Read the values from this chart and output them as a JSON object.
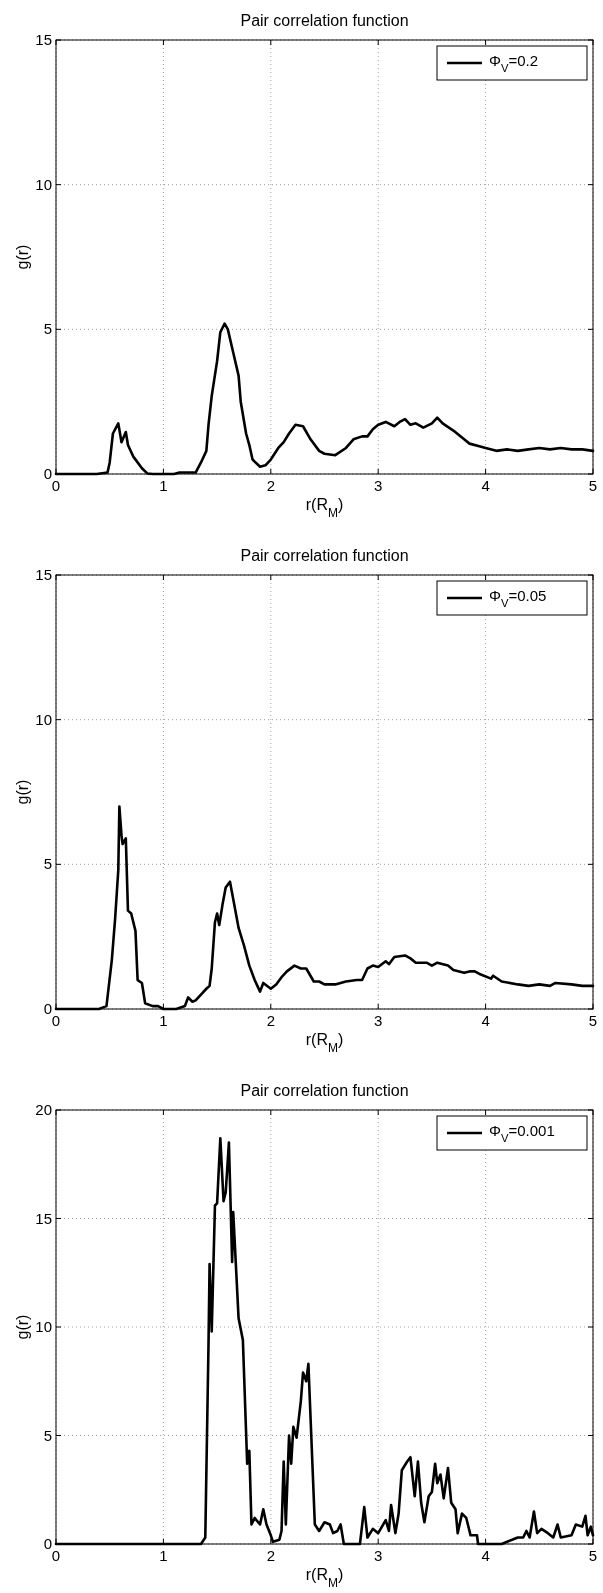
{
  "chart_data": [
    {
      "type": "line",
      "title": "Pair correlation function",
      "xlabel": "r(R$_{M}$)",
      "ylabel": "g(r)",
      "xlim": [
        0,
        5
      ],
      "xticks": [
        0,
        1,
        2,
        3,
        4,
        5
      ],
      "ylim": [
        0,
        15
      ],
      "yticks": [
        0,
        5,
        10,
        15
      ],
      "grid": true,
      "legend": "top right",
      "line_style": "solid",
      "x": [
        0,
        0.38,
        0.48,
        0.5,
        0.53,
        0.58,
        0.61,
        0.65,
        0.67,
        0.72,
        0.8,
        0.85,
        0.9,
        1.1,
        1.15,
        1.3,
        1.35,
        1.4,
        1.42,
        1.45,
        1.5,
        1.53,
        1.57,
        1.6,
        1.65,
        1.7,
        1.72,
        1.77,
        1.8,
        1.83,
        1.9,
        1.95,
        2.0,
        2.07,
        2.12,
        2.17,
        2.23,
        2.3,
        2.37,
        2.45,
        2.5,
        2.6,
        2.7,
        2.77,
        2.85,
        2.9,
        2.95,
        3.0,
        3.07,
        3.15,
        3.2,
        3.25,
        3.3,
        3.35,
        3.42,
        3.5,
        3.55,
        3.6,
        3.7,
        3.8,
        3.85,
        3.95,
        4.0,
        4.1,
        4.2,
        4.3,
        4.4,
        4.5,
        4.6,
        4.7,
        4.8,
        4.9,
        5.0
      ],
      "series": [
        {
          "name": "Φ$_{V}$=0.2",
          "color": "#000000",
          "values": [
            0,
            0,
            0.05,
            0.4,
            1.4,
            1.75,
            1.1,
            1.45,
            1.0,
            0.6,
            0.2,
            0.02,
            0,
            0,
            0.05,
            0.05,
            0.4,
            0.8,
            1.7,
            2.7,
            3.9,
            4.9,
            5.2,
            5.0,
            4.2,
            3.4,
            2.5,
            1.4,
            1.0,
            0.5,
            0.25,
            0.3,
            0.5,
            0.9,
            1.1,
            1.4,
            1.7,
            1.65,
            1.2,
            0.8,
            0.7,
            0.65,
            0.9,
            1.2,
            1.3,
            1.3,
            1.55,
            1.7,
            1.8,
            1.65,
            1.8,
            1.9,
            1.7,
            1.75,
            1.6,
            1.75,
            1.95,
            1.75,
            1.5,
            1.2,
            1.05,
            0.95,
            0.9,
            0.8,
            0.85,
            0.8,
            0.85,
            0.9,
            0.85,
            0.9,
            0.85,
            0.85,
            0.8
          ]
        }
      ]
    },
    {
      "type": "line",
      "title": "Pair correlation function",
      "xlabel": "r(R$_{M}$)",
      "ylabel": "g(r)",
      "xlim": [
        0,
        5
      ],
      "xticks": [
        0,
        1,
        2,
        3,
        4,
        5
      ],
      "ylim": [
        0,
        15
      ],
      "yticks": [
        0,
        5,
        10,
        15
      ],
      "grid": true,
      "legend": "top right",
      "line_style": "solid",
      "x": [
        0,
        0.4,
        0.47,
        0.52,
        0.55,
        0.58,
        0.59,
        0.61,
        0.62,
        0.65,
        0.67,
        0.7,
        0.74,
        0.76,
        0.8,
        0.83,
        0.9,
        0.95,
        1.0,
        1.12,
        1.2,
        1.23,
        1.27,
        1.3,
        1.35,
        1.4,
        1.43,
        1.45,
        1.48,
        1.5,
        1.52,
        1.55,
        1.58,
        1.62,
        1.66,
        1.7,
        1.75,
        1.8,
        1.85,
        1.9,
        1.93,
        2.0,
        2.05,
        2.1,
        2.15,
        2.22,
        2.28,
        2.33,
        2.4,
        2.45,
        2.5,
        2.6,
        2.7,
        2.8,
        2.85,
        2.9,
        2.95,
        3.0,
        3.07,
        3.1,
        3.15,
        3.25,
        3.3,
        3.35,
        3.45,
        3.5,
        3.55,
        3.65,
        3.7,
        3.8,
        3.85,
        3.9,
        3.95,
        4.05,
        4.07,
        4.15,
        4.3,
        4.4,
        4.5,
        4.6,
        4.65,
        4.8,
        4.9,
        5.0
      ],
      "series": [
        {
          "name": "Φ$_{V}$=0.05",
          "color": "#000000",
          "values": [
            0,
            0,
            0.1,
            1.7,
            3.1,
            4.8,
            7.0,
            6.0,
            5.7,
            5.9,
            3.4,
            3.3,
            2.7,
            1.0,
            0.9,
            0.2,
            0.1,
            0.1,
            0,
            0,
            0.1,
            0.4,
            0.25,
            0.3,
            0.5,
            0.7,
            0.8,
            1.4,
            3.0,
            3.3,
            2.9,
            3.6,
            4.2,
            4.4,
            3.6,
            2.8,
            2.2,
            1.5,
            1.0,
            0.6,
            0.9,
            0.7,
            0.85,
            1.1,
            1.3,
            1.5,
            1.4,
            1.4,
            0.95,
            0.95,
            0.85,
            0.85,
            0.95,
            1.0,
            1.0,
            1.4,
            1.5,
            1.45,
            1.65,
            1.55,
            1.8,
            1.85,
            1.75,
            1.6,
            1.6,
            1.5,
            1.6,
            1.5,
            1.35,
            1.25,
            1.3,
            1.3,
            1.2,
            1.05,
            1.15,
            0.95,
            0.85,
            0.8,
            0.85,
            0.8,
            0.9,
            0.85,
            0.8,
            0.8
          ]
        }
      ]
    },
    {
      "type": "line",
      "title": "Pair correlation function",
      "xlabel": "r(R$_{M}$)",
      "ylabel": "g(r)",
      "xlim": [
        0,
        5
      ],
      "xticks": [
        0,
        1,
        2,
        3,
        4,
        5
      ],
      "ylim": [
        0,
        20
      ],
      "yticks": [
        0,
        5,
        10,
        15,
        20
      ],
      "grid": true,
      "legend": "top right",
      "line_style": "solid",
      "x": [
        0,
        1.35,
        1.39,
        1.42,
        1.43,
        1.45,
        1.48,
        1.5,
        1.53,
        1.56,
        1.58,
        1.61,
        1.64,
        1.65,
        1.7,
        1.74,
        1.78,
        1.8,
        1.82,
        1.85,
        1.9,
        1.93,
        1.96,
        2.0,
        2.02,
        2.08,
        2.1,
        2.12,
        2.14,
        2.17,
        2.19,
        2.21,
        2.24,
        2.28,
        2.3,
        2.33,
        2.35,
        2.38,
        2.41,
        2.45,
        2.5,
        2.55,
        2.58,
        2.62,
        2.65,
        2.68,
        2.83,
        2.87,
        2.9,
        2.95,
        3.0,
        3.07,
        3.1,
        3.12,
        3.16,
        3.19,
        3.22,
        3.27,
        3.3,
        3.34,
        3.37,
        3.4,
        3.43,
        3.47,
        3.5,
        3.53,
        3.55,
        3.58,
        3.61,
        3.65,
        3.68,
        3.72,
        3.74,
        3.78,
        3.82,
        3.86,
        3.92,
        3.93,
        4.15,
        4.2,
        4.3,
        4.35,
        4.38,
        4.41,
        4.45,
        4.48,
        4.52,
        4.58,
        4.63,
        4.67,
        4.7,
        4.8,
        4.84,
        4.9,
        4.93,
        4.95,
        4.98,
        5.0
      ],
      "series": [
        {
          "name": "Φ$_{V}$=0.001",
          "color": "#000000",
          "values": [
            0,
            0,
            0.3,
            9.2,
            12.9,
            9.8,
            15.6,
            15.7,
            18.7,
            15.8,
            16.2,
            18.5,
            13.0,
            15.3,
            10.4,
            9.4,
            3.7,
            4.3,
            0.9,
            1.2,
            0.9,
            1.6,
            0.9,
            0.4,
            0.1,
            0.2,
            0.6,
            3.8,
            0.9,
            5.0,
            3.7,
            5.4,
            4.9,
            6.6,
            7.9,
            7.5,
            8.3,
            4.6,
            0.9,
            0.6,
            1.0,
            0.9,
            0.5,
            0.6,
            0.9,
            0,
            0,
            1.7,
            0.3,
            0.7,
            0.5,
            1.1,
            0.6,
            1.8,
            0.5,
            1.4,
            3.4,
            3.8,
            4.0,
            2.2,
            3.8,
            1.9,
            1.0,
            2.2,
            2.4,
            3.7,
            2.8,
            3.2,
            2.1,
            3.5,
            1.9,
            1.6,
            0.5,
            1.4,
            1.2,
            0.4,
            0.4,
            0,
            0,
            0.1,
            0.3,
            0.3,
            0.6,
            0.3,
            1.5,
            0.5,
            0.7,
            0.5,
            0.3,
            0.9,
            0.3,
            0.4,
            0.9,
            0.8,
            1.3,
            0.4,
            0.8,
            0.4
          ]
        }
      ]
    }
  ]
}
